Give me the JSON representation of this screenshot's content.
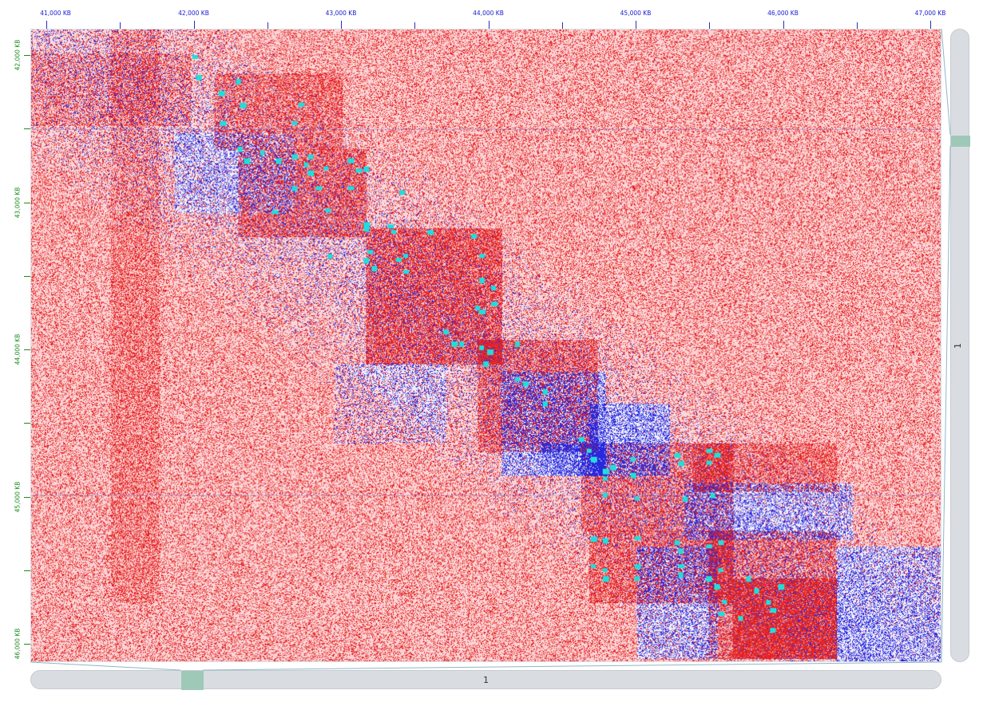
{
  "x_axis": {
    "ticks": [
      "41,000 KB",
      "42,000 KB",
      "43,000 KB",
      "44,000 KB",
      "45,000 KB",
      "46,000 KB",
      "47,000 KB"
    ],
    "label_color": "#1a1ad0"
  },
  "y_axis": {
    "ticks": [
      "42,000 KB",
      "43,000 KB",
      "44,000 KB",
      "45,000 KB",
      "46,000 KB"
    ],
    "label_color": "#1a8a1a"
  },
  "colors": {
    "contact_high": "#e31a1a",
    "contact_low": "#2a2ad8",
    "loop_highlight": "#22dcdc",
    "scroll_thumb": "#9ec9b8"
  },
  "horizontal_scrollbar": {
    "label": "1"
  },
  "vertical_scrollbar": {
    "label": "1"
  }
}
